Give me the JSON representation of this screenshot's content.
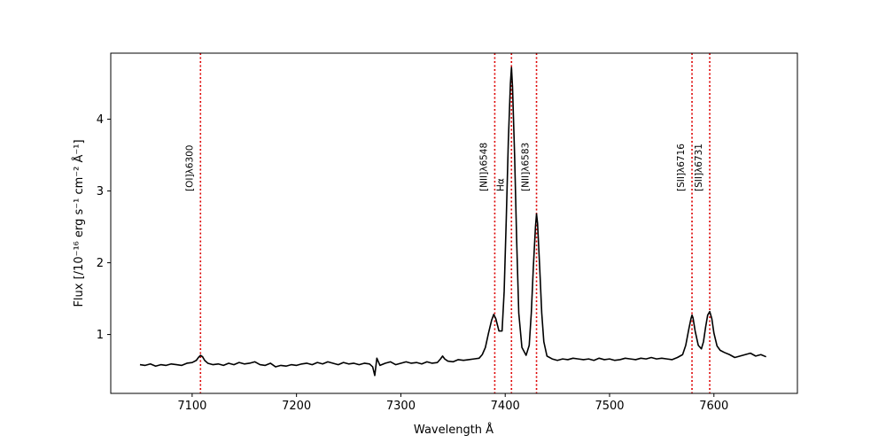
{
  "chart_data": {
    "type": "line",
    "title": "",
    "xlabel": "Wavelength Å",
    "ylabel": "Flux [/10⁻¹⁶ erg s⁻¹ cm⁻² Å⁻¹]",
    "xlim": [
      7022,
      7680
    ],
    "ylim": [
      0.18,
      4.92
    ],
    "xticks": [
      7100,
      7200,
      7300,
      7400,
      7500,
      7600
    ],
    "yticks": [
      1,
      2,
      3,
      4
    ],
    "grid": false,
    "legend": "none",
    "colors": {
      "spectrum": "#000000",
      "lines": "#dd0000"
    },
    "lines": [
      {
        "label": "[OI]λ6300",
        "x": 7108
      },
      {
        "label": "[NII]λ6548",
        "x": 7390
      },
      {
        "label": "Hα",
        "x": 7406
      },
      {
        "label": "[NII]λ6583",
        "x": 7430
      },
      {
        "label": "[SII]λ6716",
        "x": 7579
      },
      {
        "label": "[SII]λ6731",
        "x": 7596
      }
    ],
    "series": [
      {
        "x": [
          7050,
          7055,
          7060,
          7065,
          7070,
          7075,
          7080,
          7085,
          7090,
          7095,
          7100,
          7104,
          7106,
          7108,
          7110,
          7112,
          7115,
          7120,
          7125,
          7130,
          7135,
          7140,
          7145,
          7150,
          7155,
          7160,
          7165,
          7170,
          7175,
          7180,
          7185,
          7190,
          7195,
          7200,
          7205,
          7210,
          7215,
          7220,
          7225,
          7230,
          7235,
          7240,
          7245,
          7250,
          7255,
          7260,
          7265,
          7270,
          7273,
          7275,
          7277,
          7280,
          7285,
          7290,
          7295,
          7300,
          7305,
          7310,
          7315,
          7320,
          7325,
          7330,
          7335,
          7338,
          7340,
          7342,
          7345,
          7350,
          7355,
          7360,
          7365,
          7370,
          7375,
          7378,
          7381,
          7384,
          7387,
          7389,
          7391,
          7394,
          7397,
          7399,
          7401,
          7403,
          7405,
          7406,
          7407,
          7409,
          7411,
          7413,
          7416,
          7420,
          7423,
          7425,
          7427,
          7429,
          7430,
          7431,
          7433,
          7435,
          7437,
          7440,
          7445,
          7450,
          7455,
          7460,
          7465,
          7470,
          7475,
          7480,
          7485,
          7490,
          7495,
          7500,
          7505,
          7510,
          7515,
          7520,
          7525,
          7530,
          7535,
          7540,
          7545,
          7550,
          7555,
          7560,
          7565,
          7570,
          7573,
          7576,
          7578,
          7579,
          7580,
          7582,
          7585,
          7588,
          7590,
          7592,
          7594,
          7596,
          7598,
          7600,
          7603,
          7606,
          7610,
          7615,
          7620,
          7625,
          7630,
          7635,
          7640,
          7645,
          7650
        ],
        "y": [
          0.58,
          0.57,
          0.59,
          0.56,
          0.58,
          0.57,
          0.59,
          0.58,
          0.57,
          0.6,
          0.61,
          0.64,
          0.68,
          0.71,
          0.69,
          0.64,
          0.6,
          0.58,
          0.59,
          0.57,
          0.6,
          0.58,
          0.61,
          0.59,
          0.6,
          0.62,
          0.58,
          0.57,
          0.6,
          0.55,
          0.57,
          0.56,
          0.58,
          0.57,
          0.59,
          0.6,
          0.58,
          0.61,
          0.59,
          0.62,
          0.6,
          0.58,
          0.61,
          0.59,
          0.6,
          0.58,
          0.6,
          0.59,
          0.55,
          0.43,
          0.67,
          0.57,
          0.6,
          0.62,
          0.58,
          0.6,
          0.62,
          0.6,
          0.61,
          0.59,
          0.62,
          0.6,
          0.61,
          0.66,
          0.7,
          0.66,
          0.63,
          0.62,
          0.65,
          0.64,
          0.65,
          0.66,
          0.67,
          0.72,
          0.82,
          1.02,
          1.2,
          1.28,
          1.22,
          1.05,
          1.05,
          1.6,
          2.6,
          3.7,
          4.5,
          4.72,
          4.45,
          3.5,
          2.3,
          1.3,
          0.82,
          0.71,
          0.85,
          1.3,
          1.95,
          2.5,
          2.68,
          2.55,
          1.95,
          1.3,
          0.9,
          0.7,
          0.66,
          0.64,
          0.66,
          0.65,
          0.67,
          0.66,
          0.65,
          0.66,
          0.64,
          0.67,
          0.65,
          0.66,
          0.64,
          0.65,
          0.67,
          0.66,
          0.65,
          0.67,
          0.66,
          0.68,
          0.66,
          0.67,
          0.66,
          0.65,
          0.68,
          0.72,
          0.85,
          1.08,
          1.22,
          1.27,
          1.23,
          1.05,
          0.85,
          0.8,
          0.9,
          1.1,
          1.27,
          1.32,
          1.22,
          1.02,
          0.84,
          0.78,
          0.75,
          0.72,
          0.68,
          0.7,
          0.72,
          0.74,
          0.7,
          0.72,
          0.69
        ]
      }
    ]
  }
}
